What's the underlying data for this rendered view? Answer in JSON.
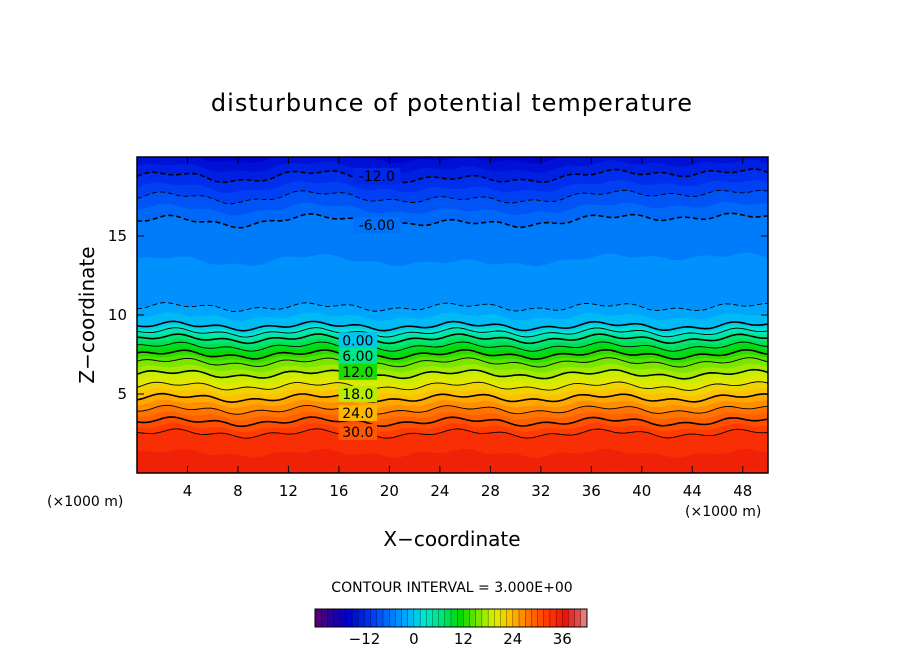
{
  "chart_data": {
    "type": "heatmap",
    "title": "disturbunce of potential temperature",
    "xlabel": "X−coordinate",
    "ylabel": "Z−coordinate",
    "x_unit": "(×1000 m)",
    "y_unit": "(×1000 m)",
    "xlim": [
      0,
      50
    ],
    "ylim": [
      0,
      20
    ],
    "x_ticks": [
      "4",
      "8",
      "12",
      "16",
      "20",
      "24",
      "28",
      "32",
      "36",
      "40",
      "44",
      "48"
    ],
    "x_tick_values": [
      4,
      8,
      12,
      16,
      20,
      24,
      28,
      32,
      36,
      40,
      44,
      48
    ],
    "y_ticks": [
      "5",
      "10",
      "15"
    ],
    "y_tick_values": [
      5,
      10,
      15
    ],
    "contour_interval_text": "CONTOUR INTERVAL = 3.000E+00",
    "contour_interval": 3,
    "field_profile": {
      "z": [
        0,
        2.5,
        4.0,
        5.5,
        7.0,
        8.5,
        9.3,
        10.5,
        12.5,
        14.5,
        16.0,
        17.5,
        18.8,
        20
      ],
      "theta": [
        36,
        33,
        27,
        21,
        15,
        6,
        0,
        -3,
        -4,
        -5,
        -6,
        -9,
        -12,
        -15
      ]
    },
    "contour_labels": [
      {
        "text": "-12.0",
        "x": 19.0,
        "z": 18.8
      },
      {
        "text": "-6.00",
        "x": 19.0,
        "z": 15.7
      },
      {
        "text": "0.00",
        "x": 17.5,
        "z": 8.4
      },
      {
        "text": "6.00",
        "x": 17.5,
        "z": 7.4
      },
      {
        "text": "12.0",
        "x": 17.5,
        "z": 6.4
      },
      {
        "text": "18.0",
        "x": 17.5,
        "z": 5.0
      },
      {
        "text": "24.0",
        "x": 17.5,
        "z": 3.8
      },
      {
        "text": "30.0",
        "x": 17.5,
        "z": 2.6
      }
    ],
    "colorbar": {
      "min": -24,
      "max": 42,
      "ticks": [
        "−12",
        "0",
        "12",
        "24",
        "36"
      ],
      "tick_values": [
        -12,
        0,
        12,
        24,
        36
      ]
    }
  }
}
